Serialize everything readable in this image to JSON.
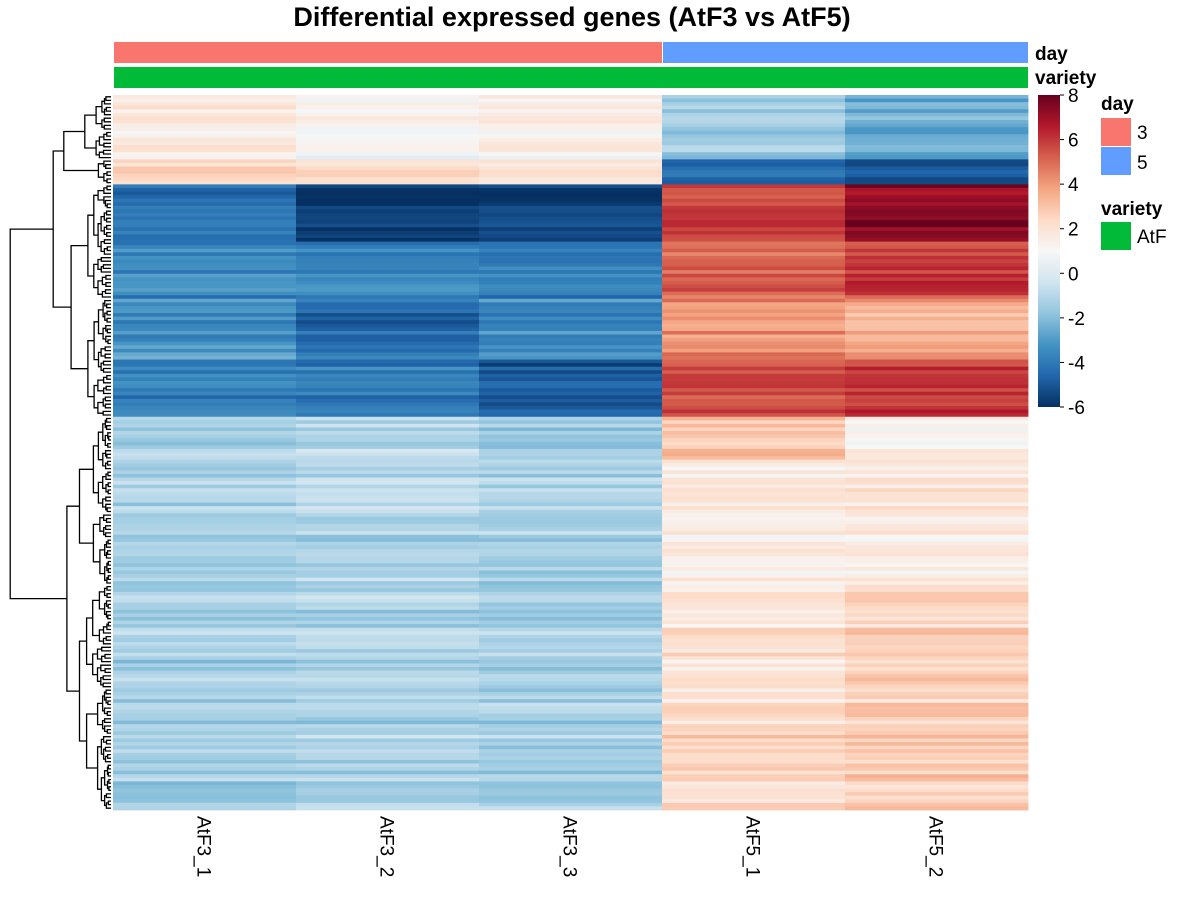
{
  "chart_data": {
    "type": "heatmap",
    "title": "Differential expressed genes (AtF3 vs AtF5)",
    "columns": [
      "AtF3_1",
      "AtF3_2",
      "AtF3_3",
      "AtF5_1",
      "AtF5_2"
    ],
    "column_annotations": {
      "day": [
        "3",
        "3",
        "3",
        "5",
        "5"
      ],
      "variety": [
        "AtF",
        "AtF",
        "AtF",
        "AtF",
        "AtF"
      ]
    },
    "annotation_labels": [
      "day",
      "variety"
    ],
    "annotation_colors": {
      "day": {
        "3": "#F8766D",
        "5": "#619CFF"
      },
      "variety": {
        "AtF": "#00BA38"
      }
    },
    "color_scale": {
      "min": -6,
      "max": 8,
      "ticks": [
        8,
        6,
        4,
        2,
        0,
        -2,
        -4,
        -6
      ],
      "colors": [
        "#053061",
        "#2166AC",
        "#4393C3",
        "#92C5DE",
        "#D1E5F0",
        "#F7F7F7",
        "#FDDBC7",
        "#F4A582",
        "#D6604D",
        "#B2182B",
        "#67001F"
      ]
    },
    "row_blocks": [
      {
        "genes": 18,
        "values": [
          1.6,
          1.0,
          1.3,
          -1.6,
          -2.6
        ]
      },
      {
        "genes": 7,
        "values": [
          2.6,
          2.4,
          2.1,
          -4.3,
          -5.0
        ]
      },
      {
        "genes": 16,
        "values": [
          -4.2,
          -5.8,
          -5.6,
          5.8,
          7.2
        ]
      },
      {
        "genes": 16,
        "values": [
          -3.6,
          -3.8,
          -4.0,
          5.0,
          5.8
        ]
      },
      {
        "genes": 17,
        "values": [
          -3.2,
          -4.4,
          -3.5,
          4.2,
          3.6
        ]
      },
      {
        "genes": 16,
        "values": [
          -3.8,
          -4.0,
          -4.9,
          5.5,
          6.0
        ]
      },
      {
        "genes": 12,
        "values": [
          -1.2,
          -1.0,
          -1.6,
          2.8,
          1.2
        ]
      },
      {
        "genes": 35,
        "values": [
          -1.3,
          -1.1,
          -1.3,
          1.6,
          1.7
        ]
      },
      {
        "genes": 35,
        "values": [
          -1.4,
          -1.2,
          -1.4,
          1.9,
          2.5
        ]
      },
      {
        "genes": 28,
        "values": [
          -1.4,
          -1.2,
          -1.4,
          2.4,
          2.8
        ]
      }
    ]
  },
  "legend": {
    "day_title": "day",
    "day_items": [
      {
        "label": "3",
        "color": "#F8766D"
      },
      {
        "label": "5",
        "color": "#619CFF"
      }
    ],
    "variety_title": "variety",
    "variety_items": [
      {
        "label": "AtF",
        "color": "#00BA38"
      }
    ]
  }
}
